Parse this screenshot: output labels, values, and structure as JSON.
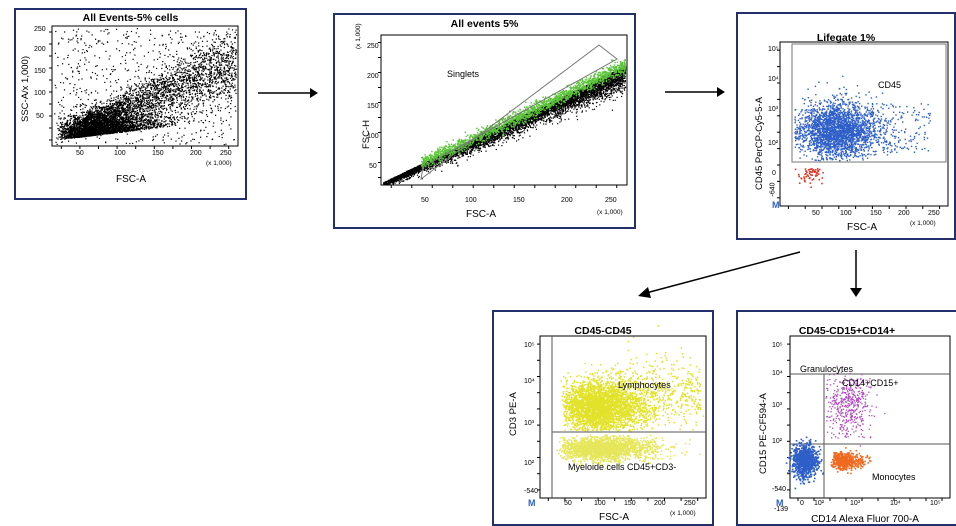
{
  "panels": [
    {
      "id": "p1",
      "title": "All Events-5% cells",
      "xlabel": "FSC-A",
      "ylabel": "SSC-A/x 1,000)",
      "x_ticks": [
        "50",
        "100",
        "150",
        "200",
        "250"
      ],
      "y_ticks": [
        "50",
        "100",
        "150",
        "200",
        "250"
      ],
      "x_scale": "(x 1,000)",
      "y_scale": ""
    },
    {
      "id": "p2",
      "title": "All events 5%",
      "xlabel": "FSC-A",
      "ylabel": "FSC-H",
      "x_ticks": [
        "50",
        "100",
        "150",
        "200",
        "250"
      ],
      "y_ticks": [
        "50",
        "100",
        "150",
        "200",
        "250"
      ],
      "x_scale": "(x 1,000)",
      "y_scale": "(x 1,000)",
      "gate_label": "Singlets"
    },
    {
      "id": "p3",
      "title": "Lifegate 1%",
      "xlabel": "FSC-A",
      "ylabel": "CD45 PerCP-Cy5-5-A",
      "x_ticks": [
        "50",
        "100",
        "150",
        "200",
        "250"
      ],
      "y_ticks": [
        "-640",
        "0",
        "10²",
        "10³",
        "10⁴",
        "10⁵"
      ],
      "x_scale": "(x 1,000)",
      "gate_label": "CD45"
    },
    {
      "id": "p4",
      "title": "CD45-CD45",
      "xlabel": "FSC-A",
      "ylabel": "CD3 PE-A",
      "x_ticks": [
        "50",
        "100",
        "150",
        "200",
        "250"
      ],
      "y_ticks": [
        "-540",
        "10²",
        "10³",
        "10⁴",
        "10⁵"
      ],
      "x_scale": "(x 1,000)",
      "gate_labels": [
        "Lymphocytes",
        "Myeloide cells CD45+CD3-"
      ]
    },
    {
      "id": "p5",
      "title": "CD45-CD15+CD14+",
      "xlabel": "CD14 Alexa Fluor 700-A",
      "ylabel": "CD15 PE-CF594-A",
      "x_ticks": [
        "-139",
        "0",
        "10²",
        "10³",
        "10⁴",
        "10⁵"
      ],
      "y_ticks": [
        "-540",
        "10²",
        "10³",
        "10⁴",
        "10⁵"
      ],
      "gate_labels": [
        "Granulocytes",
        "CD14+CD15+",
        "Monocytes"
      ]
    }
  ],
  "colors": {
    "frame": "#23306b",
    "events": "#000000",
    "singlets": "#5cc43a",
    "cd45": "#2f5fc8",
    "cd45_neg": "#e03a2a",
    "lymph": "#e2e22a",
    "myeloid": "#e6e65a",
    "granulocytes": "#b04bc0",
    "monocytes": "#ef6a1e",
    "cd14_neg": "#2f5fc8"
  }
}
